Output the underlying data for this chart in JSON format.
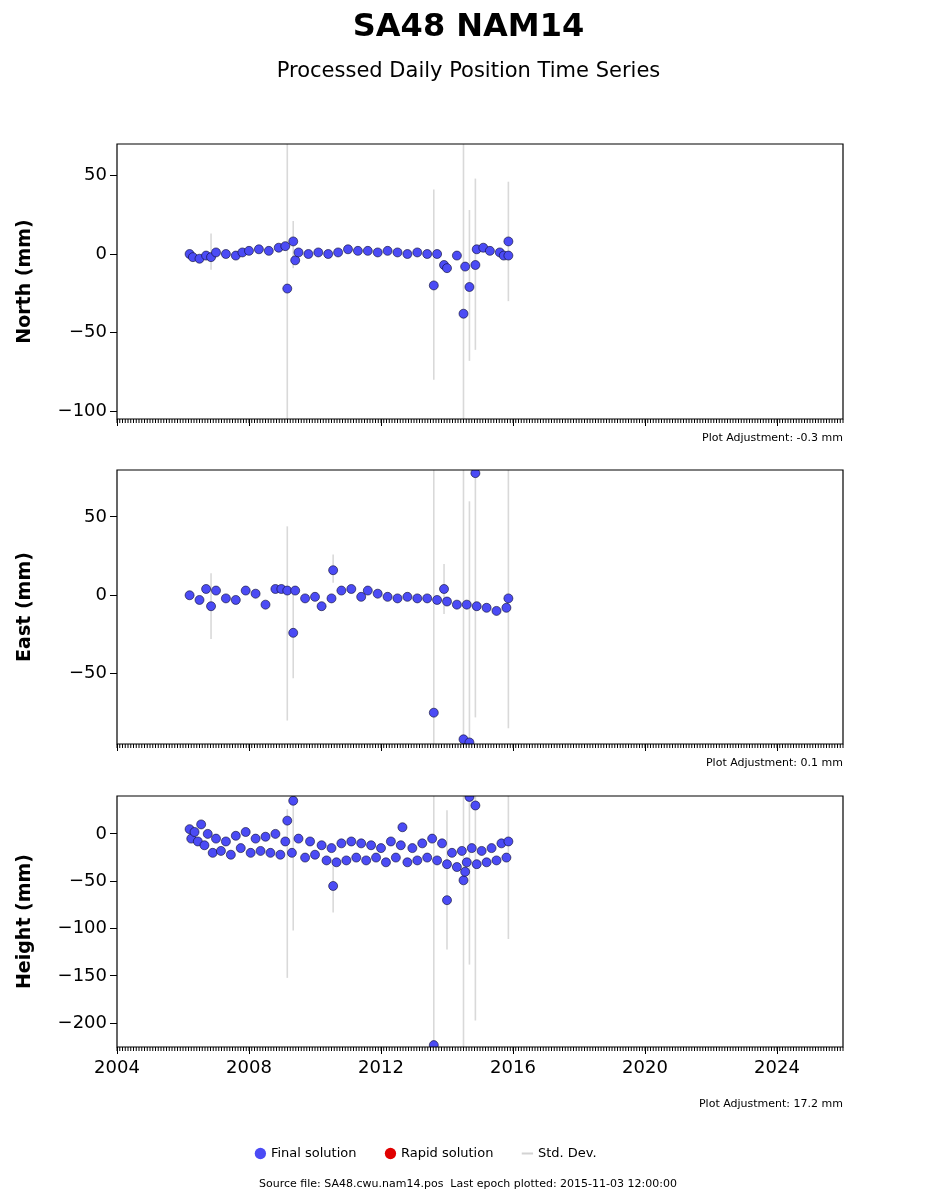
{
  "chart_data": [
    {
      "type": "scatter",
      "title": "SA48 NAM14",
      "subtitle": "Processed Daily Position Time Series",
      "ylabel": "North (mm)",
      "xlim": [
        2004,
        2026
      ],
      "xticks": [
        2004,
        2008,
        2012,
        2016,
        2020,
        2024
      ],
      "ylim": [
        -105,
        70
      ],
      "yticks": [
        -100,
        -50,
        0,
        50
      ],
      "grid": false,
      "legend": false,
      "tick_labels": "y",
      "marker": "circle",
      "annotations": [
        "Plot Adjustment: -0.3 mm"
      ],
      "series": [
        {
          "color": "#4b4bf5",
          "x": [
            2006.2,
            2006.3,
            2006.5,
            2006.7,
            2006.85,
            2007.0,
            2007.3,
            2007.6,
            2007.8,
            2008.0,
            2008.3,
            2008.6,
            2008.9,
            2009.1,
            2009.16,
            2009.34,
            2009.4,
            2009.5,
            2009.8,
            2010.1,
            2010.4,
            2010.7,
            2011.0,
            2011.3,
            2011.6,
            2011.9,
            2012.2,
            2012.5,
            2012.8,
            2013.1,
            2013.4,
            2013.6,
            2013.7,
            2013.91,
            2014.0,
            2014.3,
            2014.5,
            2014.55,
            2014.68,
            2014.86,
            2014.9,
            2015.1,
            2015.3,
            2015.6,
            2015.72,
            2015.86,
            2015.86
          ],
          "values": [
            0,
            -2,
            -3,
            -1,
            -2,
            1,
            0,
            -1,
            1,
            2,
            3,
            2,
            4,
            5,
            -22,
            8,
            -4,
            1,
            0,
            1,
            0,
            1,
            3,
            2,
            2,
            1,
            2,
            1,
            0,
            1,
            0,
            -20,
            0,
            -7,
            -9,
            -1,
            -38,
            -8,
            -21,
            -7,
            3,
            4,
            2,
            1,
            -1,
            8,
            -1
          ],
          "errors": [
            null,
            null,
            null,
            null,
            [
              -10,
              13
            ],
            null,
            null,
            null,
            null,
            null,
            null,
            null,
            null,
            null,
            [
              -105,
              70
            ],
            [
              -9,
              21
            ],
            null,
            null,
            null,
            null,
            null,
            null,
            null,
            null,
            null,
            null,
            null,
            null,
            null,
            null,
            null,
            [
              -80,
              41
            ],
            null,
            null,
            null,
            null,
            [
              -105,
              70
            ],
            null,
            [
              -68,
              28
            ],
            [
              -61,
              48
            ],
            null,
            null,
            null,
            null,
            null,
            [
              -30,
              46
            ],
            null
          ]
        }
      ]
    },
    {
      "type": "scatter",
      "ylabel": "East (mm)",
      "xlim": [
        2004,
        2026
      ],
      "xticks": [
        2004,
        2008,
        2012,
        2016,
        2020,
        2024
      ],
      "ylim": [
        -95,
        80
      ],
      "yticks": [
        -50,
        0,
        50
      ],
      "grid": false,
      "legend": false,
      "tick_labels": "y",
      "marker": "circle",
      "annotations": [
        "Plot Adjustment: 0.1 mm"
      ],
      "series": [
        {
          "color": "#4b4bf5",
          "x": [
            2006.2,
            2006.5,
            2006.7,
            2006.85,
            2007.0,
            2007.3,
            2007.6,
            2007.9,
            2008.2,
            2008.5,
            2008.8,
            2008.98,
            2009.16,
            2009.34,
            2009.4,
            2009.7,
            2010.0,
            2010.2,
            2010.5,
            2010.55,
            2010.8,
            2011.1,
            2011.4,
            2011.6,
            2011.9,
            2012.2,
            2012.5,
            2012.8,
            2013.1,
            2013.4,
            2013.6,
            2013.7,
            2013.91,
            2014.0,
            2014.3,
            2014.5,
            2014.6,
            2014.68,
            2014.86,
            2014.9,
            2015.2,
            2015.5,
            2015.8,
            2015.86
          ],
          "values": [
            0,
            -3,
            4,
            -7,
            3,
            -2,
            -3,
            3,
            1,
            -6,
            4,
            4,
            3,
            -24,
            3,
            -2,
            -1,
            -7,
            -2,
            16,
            3,
            4,
            -1,
            3,
            1,
            -1,
            -2,
            -1,
            -2,
            -2,
            -75,
            -3,
            4,
            -4,
            -6,
            -92,
            -6,
            -94,
            78,
            -7,
            -8,
            -10,
            -8,
            -2
          ],
          "errors": [
            null,
            null,
            null,
            [
              -28,
              14
            ],
            null,
            null,
            null,
            null,
            null,
            null,
            null,
            null,
            [
              -80,
              44
            ],
            [
              -53,
              3
            ],
            null,
            null,
            null,
            null,
            null,
            [
              8,
              26
            ],
            null,
            null,
            null,
            null,
            null,
            null,
            null,
            null,
            null,
            null,
            [
              -95,
              80
            ],
            null,
            [
              -12,
              20
            ],
            null,
            null,
            [
              -95,
              80
            ],
            null,
            [
              -95,
              60
            ],
            [
              -78,
              80
            ],
            null,
            null,
            null,
            null,
            [
              -85,
              80
            ]
          ]
        }
      ]
    },
    {
      "type": "scatter",
      "ylabel": "Height (mm)",
      "xlim": [
        2004,
        2026
      ],
      "xticks": [
        2004,
        2008,
        2012,
        2016,
        2020,
        2024
      ],
      "ylim": [
        -225,
        40
      ],
      "yticks": [
        -200,
        -150,
        -100,
        -50,
        0
      ],
      "grid": false,
      "legend": "bottom",
      "marker": "circle",
      "annotations": [
        "Plot Adjustment: 17.2 mm",
        "Source file: SA48.cwu.nam14.pos  Last epoch plotted: 2015-11-03 12:00:00"
      ],
      "series": [
        {
          "name": "Final solution",
          "color": "#4b4bf5",
          "x": [
            2006.2,
            2006.25,
            2006.35,
            2006.45,
            2006.55,
            2006.65,
            2006.75,
            2006.9,
            2007.0,
            2007.15,
            2007.3,
            2007.45,
            2007.6,
            2007.75,
            2007.9,
            2008.05,
            2008.2,
            2008.35,
            2008.5,
            2008.65,
            2008.8,
            2008.95,
            2009.1,
            2009.16,
            2009.3,
            2009.34,
            2009.5,
            2009.7,
            2009.85,
            2010.0,
            2010.2,
            2010.35,
            2010.5,
            2010.55,
            2010.65,
            2010.8,
            2010.95,
            2011.1,
            2011.25,
            2011.4,
            2011.55,
            2011.7,
            2011.85,
            2012.0,
            2012.15,
            2012.3,
            2012.45,
            2012.6,
            2012.65,
            2012.8,
            2012.95,
            2013.1,
            2013.25,
            2013.4,
            2013.55,
            2013.6,
            2013.7,
            2013.85,
            2014.0,
            2014.0,
            2014.15,
            2014.3,
            2014.45,
            2014.5,
            2014.55,
            2014.6,
            2014.68,
            2014.75,
            2014.86,
            2014.9,
            2015.05,
            2015.2,
            2015.35,
            2015.5,
            2015.65,
            2015.8,
            2015.86
          ],
          "values": [
            5,
            -5,
            2,
            -8,
            10,
            -12,
            0,
            -20,
            -5,
            -18,
            -8,
            -22,
            -2,
            -15,
            2,
            -20,
            -5,
            -18,
            -3,
            -20,
            0,
            -22,
            -8,
            14,
            -20,
            35,
            -5,
            -25,
            -8,
            -22,
            -12,
            -28,
            -15,
            -55,
            -30,
            -10,
            -28,
            -8,
            -25,
            -10,
            -28,
            -12,
            -25,
            -15,
            -30,
            -8,
            -25,
            -12,
            7,
            -30,
            -15,
            -28,
            -10,
            -25,
            -5,
            -223,
            -28,
            -10,
            -32,
            -70,
            -20,
            -35,
            -18,
            -49,
            -40,
            -30,
            39,
            -15,
            30,
            -32,
            -18,
            -30,
            -15,
            -28,
            -10,
            -25,
            -8
          ],
          "errors": [
            null,
            null,
            null,
            null,
            null,
            null,
            null,
            null,
            null,
            null,
            null,
            null,
            null,
            null,
            null,
            null,
            null,
            null,
            null,
            null,
            null,
            null,
            null,
            [
              -152,
              26
            ],
            null,
            [
              -102,
              40
            ],
            null,
            null,
            null,
            null,
            null,
            null,
            null,
            [
              -83,
              -30
            ],
            null,
            null,
            null,
            null,
            null,
            null,
            null,
            null,
            null,
            null,
            null,
            null,
            null,
            null,
            null,
            null,
            null,
            null,
            null,
            null,
            null,
            [
              -225,
              40
            ],
            null,
            null,
            null,
            [
              -122,
              25
            ],
            null,
            null,
            null,
            [
              -225,
              40
            ],
            null,
            null,
            [
              -138,
              40
            ],
            null,
            [
              -197,
              40
            ],
            null,
            null,
            null,
            null,
            null,
            null,
            null,
            [
              -111,
              40
            ]
          ]
        },
        {
          "name": "Rapid solution",
          "color": "#e00000"
        },
        {
          "name": "Std. Dev.",
          "type": "line",
          "color": "#d3d3d3"
        }
      ]
    }
  ]
}
